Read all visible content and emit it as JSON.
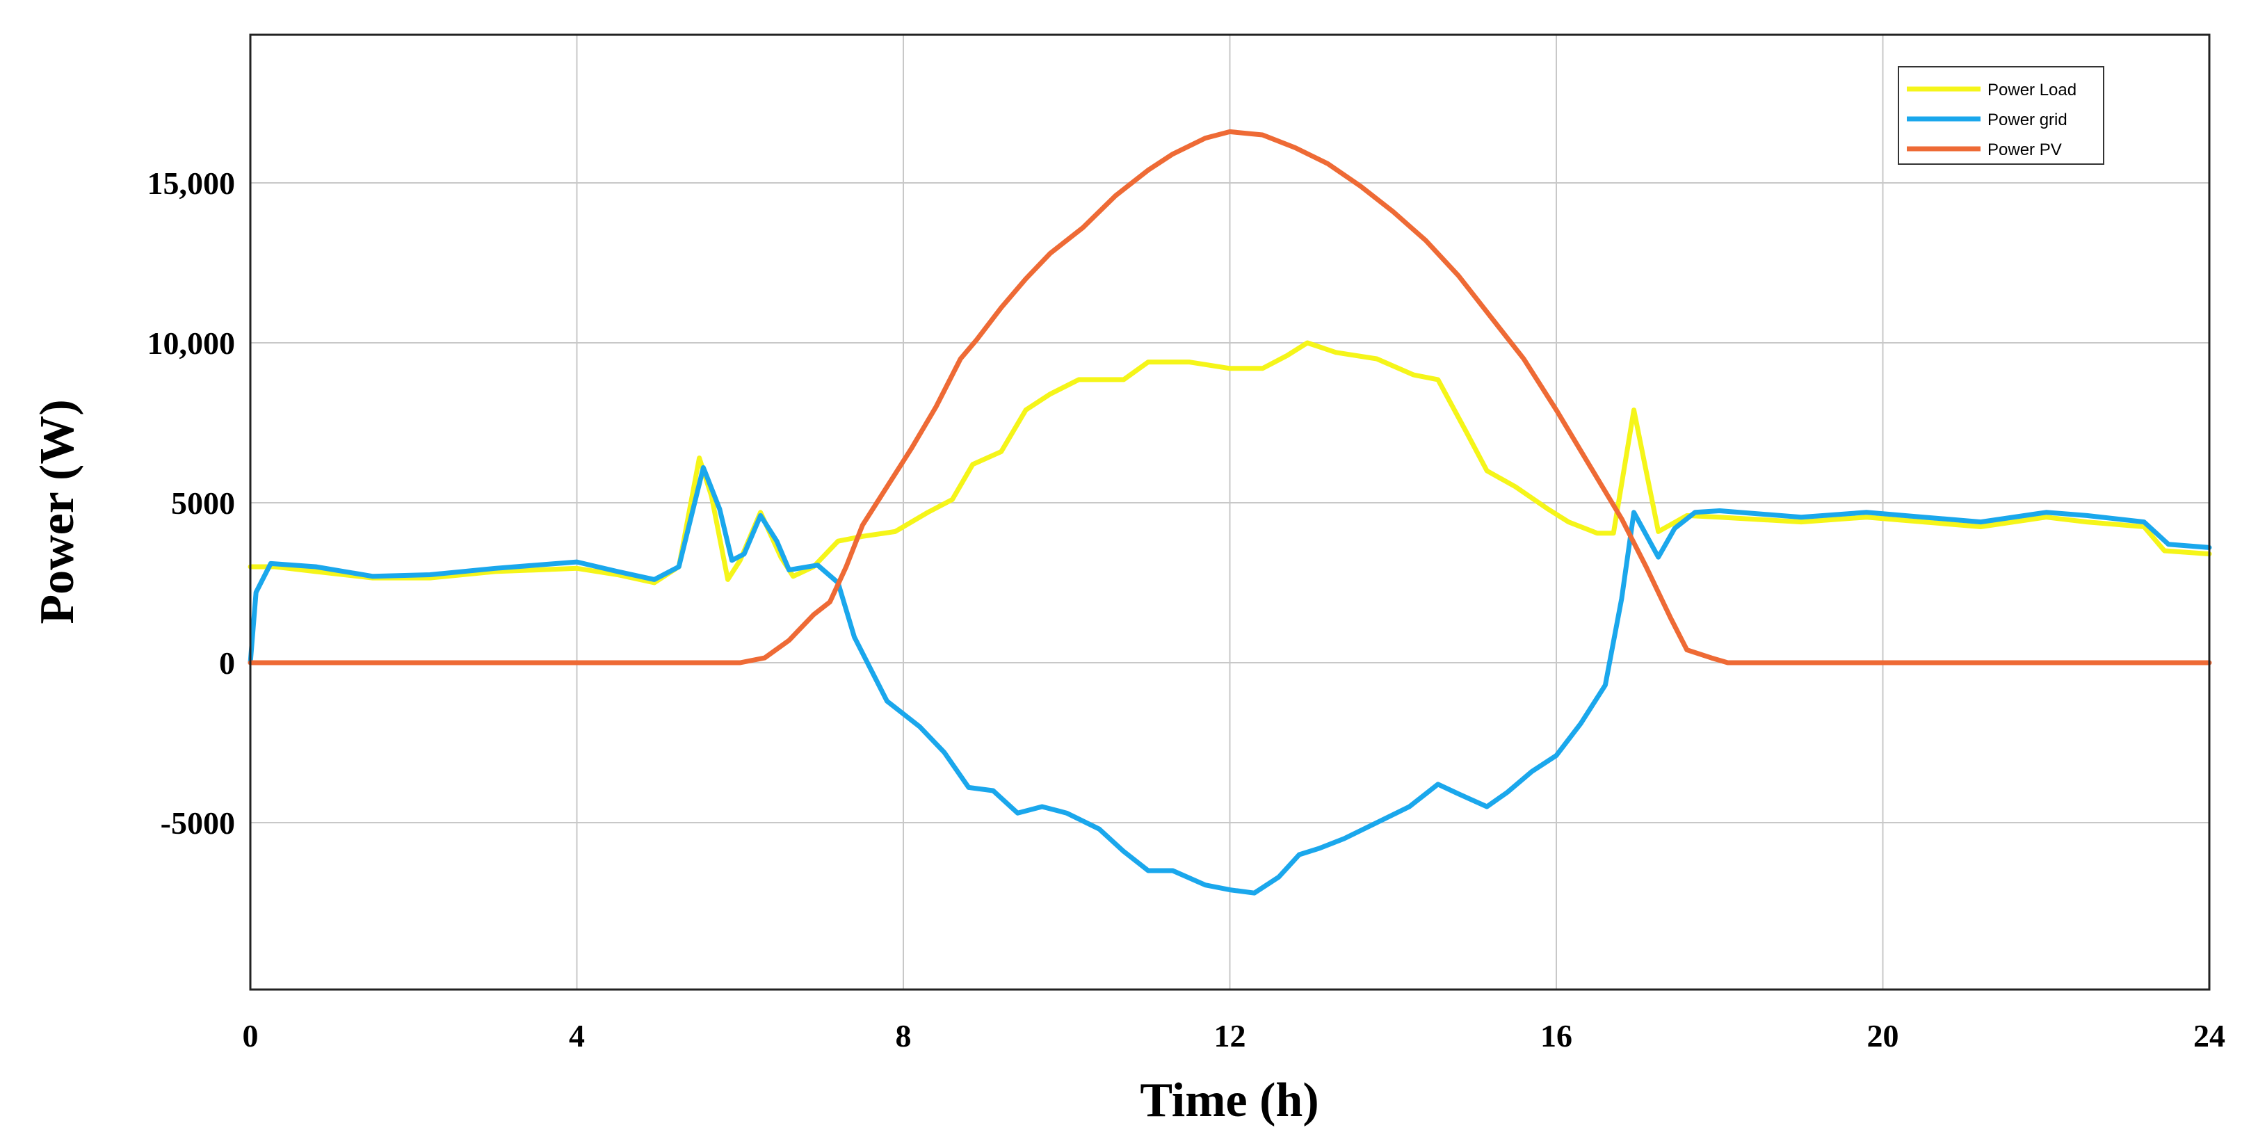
{
  "chart_data": {
    "type": "line",
    "title": "",
    "xlabel": "Time (h)",
    "ylabel": "Power (W)",
    "xlim": [
      0,
      24
    ],
    "ylim": [
      -10000,
      20000
    ],
    "grid": true,
    "legend_position": "top-right",
    "x_ticks": [
      {
        "value": 0,
        "label": "0"
      },
      {
        "value": 4,
        "label": "4"
      },
      {
        "value": 8,
        "label": "8"
      },
      {
        "value": 12,
        "label": "12"
      },
      {
        "value": 16,
        "label": "16"
      },
      {
        "value": 20,
        "label": "20"
      },
      {
        "value": 24,
        "label": "24"
      }
    ],
    "y_ticks": [
      {
        "value": 15000,
        "label": "15,000"
      },
      {
        "value": 10000,
        "label": "10,000"
      },
      {
        "value": 5000,
        "label": "5000"
      },
      {
        "value": 0,
        "label": "0"
      },
      {
        "value": -5000,
        "label": "-5000"
      }
    ],
    "series": [
      {
        "name": "Power Load",
        "color": "#f5f519",
        "points": [
          [
            0,
            3000
          ],
          [
            0.3,
            3000
          ],
          [
            0.8,
            2850
          ],
          [
            1.5,
            2650
          ],
          [
            2.2,
            2650
          ],
          [
            3,
            2850
          ],
          [
            4,
            2950
          ],
          [
            4.5,
            2750
          ],
          [
            4.95,
            2500
          ],
          [
            5.25,
            3000
          ],
          [
            5.5,
            6400
          ],
          [
            5.65,
            5200
          ],
          [
            5.85,
            2600
          ],
          [
            6,
            3200
          ],
          [
            6.25,
            4700
          ],
          [
            6.5,
            3300
          ],
          [
            6.65,
            2700
          ],
          [
            6.9,
            3000
          ],
          [
            7.2,
            3800
          ],
          [
            7.5,
            3950
          ],
          [
            7.9,
            4100
          ],
          [
            8.3,
            4700
          ],
          [
            8.6,
            5100
          ],
          [
            8.85,
            6200
          ],
          [
            9.2,
            6600
          ],
          [
            9.5,
            7900
          ],
          [
            9.8,
            8400
          ],
          [
            10.15,
            8850
          ],
          [
            10.7,
            8850
          ],
          [
            11,
            9400
          ],
          [
            11.5,
            9400
          ],
          [
            12,
            9200
          ],
          [
            12.4,
            9200
          ],
          [
            12.7,
            9600
          ],
          [
            12.95,
            10000
          ],
          [
            13.3,
            9700
          ],
          [
            13.8,
            9500
          ],
          [
            14.25,
            9000
          ],
          [
            14.55,
            8850
          ],
          [
            14.9,
            7200
          ],
          [
            15.15,
            6000
          ],
          [
            15.5,
            5500
          ],
          [
            15.9,
            4800
          ],
          [
            16.15,
            4400
          ],
          [
            16.5,
            4050
          ],
          [
            16.7,
            4050
          ],
          [
            16.95,
            7900
          ],
          [
            17.25,
            4100
          ],
          [
            17.6,
            4600
          ],
          [
            18,
            4550
          ],
          [
            19,
            4400
          ],
          [
            19.8,
            4550
          ],
          [
            20.5,
            4400
          ],
          [
            21.2,
            4250
          ],
          [
            22,
            4550
          ],
          [
            22.5,
            4400
          ],
          [
            23.2,
            4250
          ],
          [
            23.45,
            3500
          ],
          [
            24,
            3400
          ]
        ]
      },
      {
        "name": "Power grid",
        "color": "#1aa7ec",
        "points": [
          [
            0,
            0
          ],
          [
            0.07,
            2200
          ],
          [
            0.25,
            3100
          ],
          [
            0.8,
            3000
          ],
          [
            1.5,
            2700
          ],
          [
            2.2,
            2750
          ],
          [
            3,
            2950
          ],
          [
            4,
            3150
          ],
          [
            4.5,
            2850
          ],
          [
            4.95,
            2600
          ],
          [
            5.25,
            3000
          ],
          [
            5.55,
            6100
          ],
          [
            5.75,
            4800
          ],
          [
            5.9,
            3200
          ],
          [
            6.05,
            3400
          ],
          [
            6.25,
            4600
          ],
          [
            6.45,
            3800
          ],
          [
            6.6,
            2900
          ],
          [
            6.95,
            3050
          ],
          [
            7.2,
            2500
          ],
          [
            7.4,
            800
          ],
          [
            7.8,
            -1200
          ],
          [
            8.2,
            -2000
          ],
          [
            8.5,
            -2800
          ],
          [
            8.8,
            -3900
          ],
          [
            9.1,
            -4000
          ],
          [
            9.4,
            -4700
          ],
          [
            9.7,
            -4500
          ],
          [
            10,
            -4700
          ],
          [
            10.4,
            -5200
          ],
          [
            10.7,
            -5900
          ],
          [
            11,
            -6500
          ],
          [
            11.3,
            -6500
          ],
          [
            11.7,
            -6950
          ],
          [
            12,
            -7100
          ],
          [
            12.3,
            -7200
          ],
          [
            12.6,
            -6700
          ],
          [
            12.85,
            -6000
          ],
          [
            13.1,
            -5800
          ],
          [
            13.4,
            -5500
          ],
          [
            13.8,
            -5000
          ],
          [
            14.2,
            -4500
          ],
          [
            14.55,
            -3800
          ],
          [
            14.8,
            -4100
          ],
          [
            15.15,
            -4500
          ],
          [
            15.4,
            -4050
          ],
          [
            15.7,
            -3400
          ],
          [
            16,
            -2900
          ],
          [
            16.3,
            -1900
          ],
          [
            16.6,
            -700
          ],
          [
            16.8,
            2000
          ],
          [
            16.95,
            4700
          ],
          [
            17.1,
            4000
          ],
          [
            17.25,
            3300
          ],
          [
            17.45,
            4200
          ],
          [
            17.7,
            4700
          ],
          [
            18,
            4750
          ],
          [
            19,
            4550
          ],
          [
            19.8,
            4700
          ],
          [
            20.5,
            4550
          ],
          [
            21.2,
            4400
          ],
          [
            22,
            4700
          ],
          [
            22.5,
            4600
          ],
          [
            23.2,
            4400
          ],
          [
            23.5,
            3700
          ],
          [
            24,
            3600
          ]
        ]
      },
      {
        "name": "Power PV",
        "color": "#ee6a35",
        "points": [
          [
            0,
            0
          ],
          [
            6,
            0
          ],
          [
            6.3,
            150
          ],
          [
            6.6,
            700
          ],
          [
            6.9,
            1500
          ],
          [
            7.1,
            1900
          ],
          [
            7.3,
            3000
          ],
          [
            7.5,
            4300
          ],
          [
            7.8,
            5500
          ],
          [
            8.1,
            6700
          ],
          [
            8.4,
            8000
          ],
          [
            8.7,
            9500
          ],
          [
            8.9,
            10100
          ],
          [
            9.2,
            11100
          ],
          [
            9.5,
            12000
          ],
          [
            9.8,
            12800
          ],
          [
            10.2,
            13600
          ],
          [
            10.6,
            14600
          ],
          [
            11,
            15400
          ],
          [
            11.3,
            15900
          ],
          [
            11.7,
            16400
          ],
          [
            12,
            16600
          ],
          [
            12.4,
            16500
          ],
          [
            12.8,
            16100
          ],
          [
            13.2,
            15600
          ],
          [
            13.6,
            14900
          ],
          [
            14,
            14100
          ],
          [
            14.4,
            13200
          ],
          [
            14.8,
            12100
          ],
          [
            15.2,
            10800
          ],
          [
            15.6,
            9500
          ],
          [
            16,
            7900
          ],
          [
            16.4,
            6200
          ],
          [
            16.8,
            4500
          ],
          [
            17.1,
            3000
          ],
          [
            17.4,
            1400
          ],
          [
            17.6,
            400
          ],
          [
            17.9,
            150
          ],
          [
            18.1,
            0
          ],
          [
            24,
            0
          ]
        ]
      }
    ]
  }
}
